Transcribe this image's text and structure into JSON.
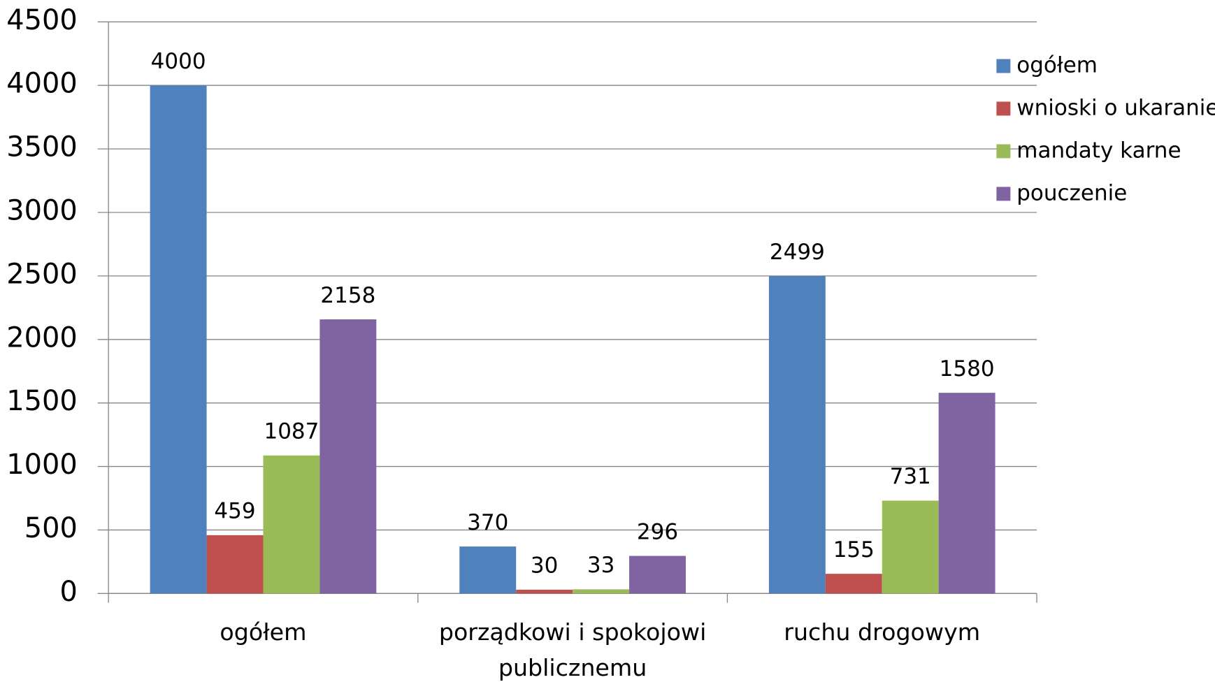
{
  "chart_data": {
    "type": "bar",
    "categories": [
      "ogółem",
      "porządkowi i spokojowi publicznemu",
      "ruchu drogowym"
    ],
    "series": [
      {
        "name": "ogółem",
        "color": "#4f81bd",
        "values": [
          4000,
          370,
          2499
        ]
      },
      {
        "name": "wnioski o ukaranie",
        "color": "#c0504d",
        "values": [
          459,
          30,
          155
        ]
      },
      {
        "name": "mandaty karne",
        "color": "#9bbb59",
        "values": [
          1087,
          33,
          731
        ]
      },
      {
        "name": "pouczenie",
        "color": "#8064a2",
        "values": [
          2158,
          296,
          1580
        ]
      }
    ],
    "ylim": [
      0,
      4500
    ],
    "yticks": [
      0,
      500,
      1000,
      1500,
      2000,
      2500,
      3000,
      3500,
      4000,
      4500
    ],
    "grid": true,
    "legend": "right"
  }
}
